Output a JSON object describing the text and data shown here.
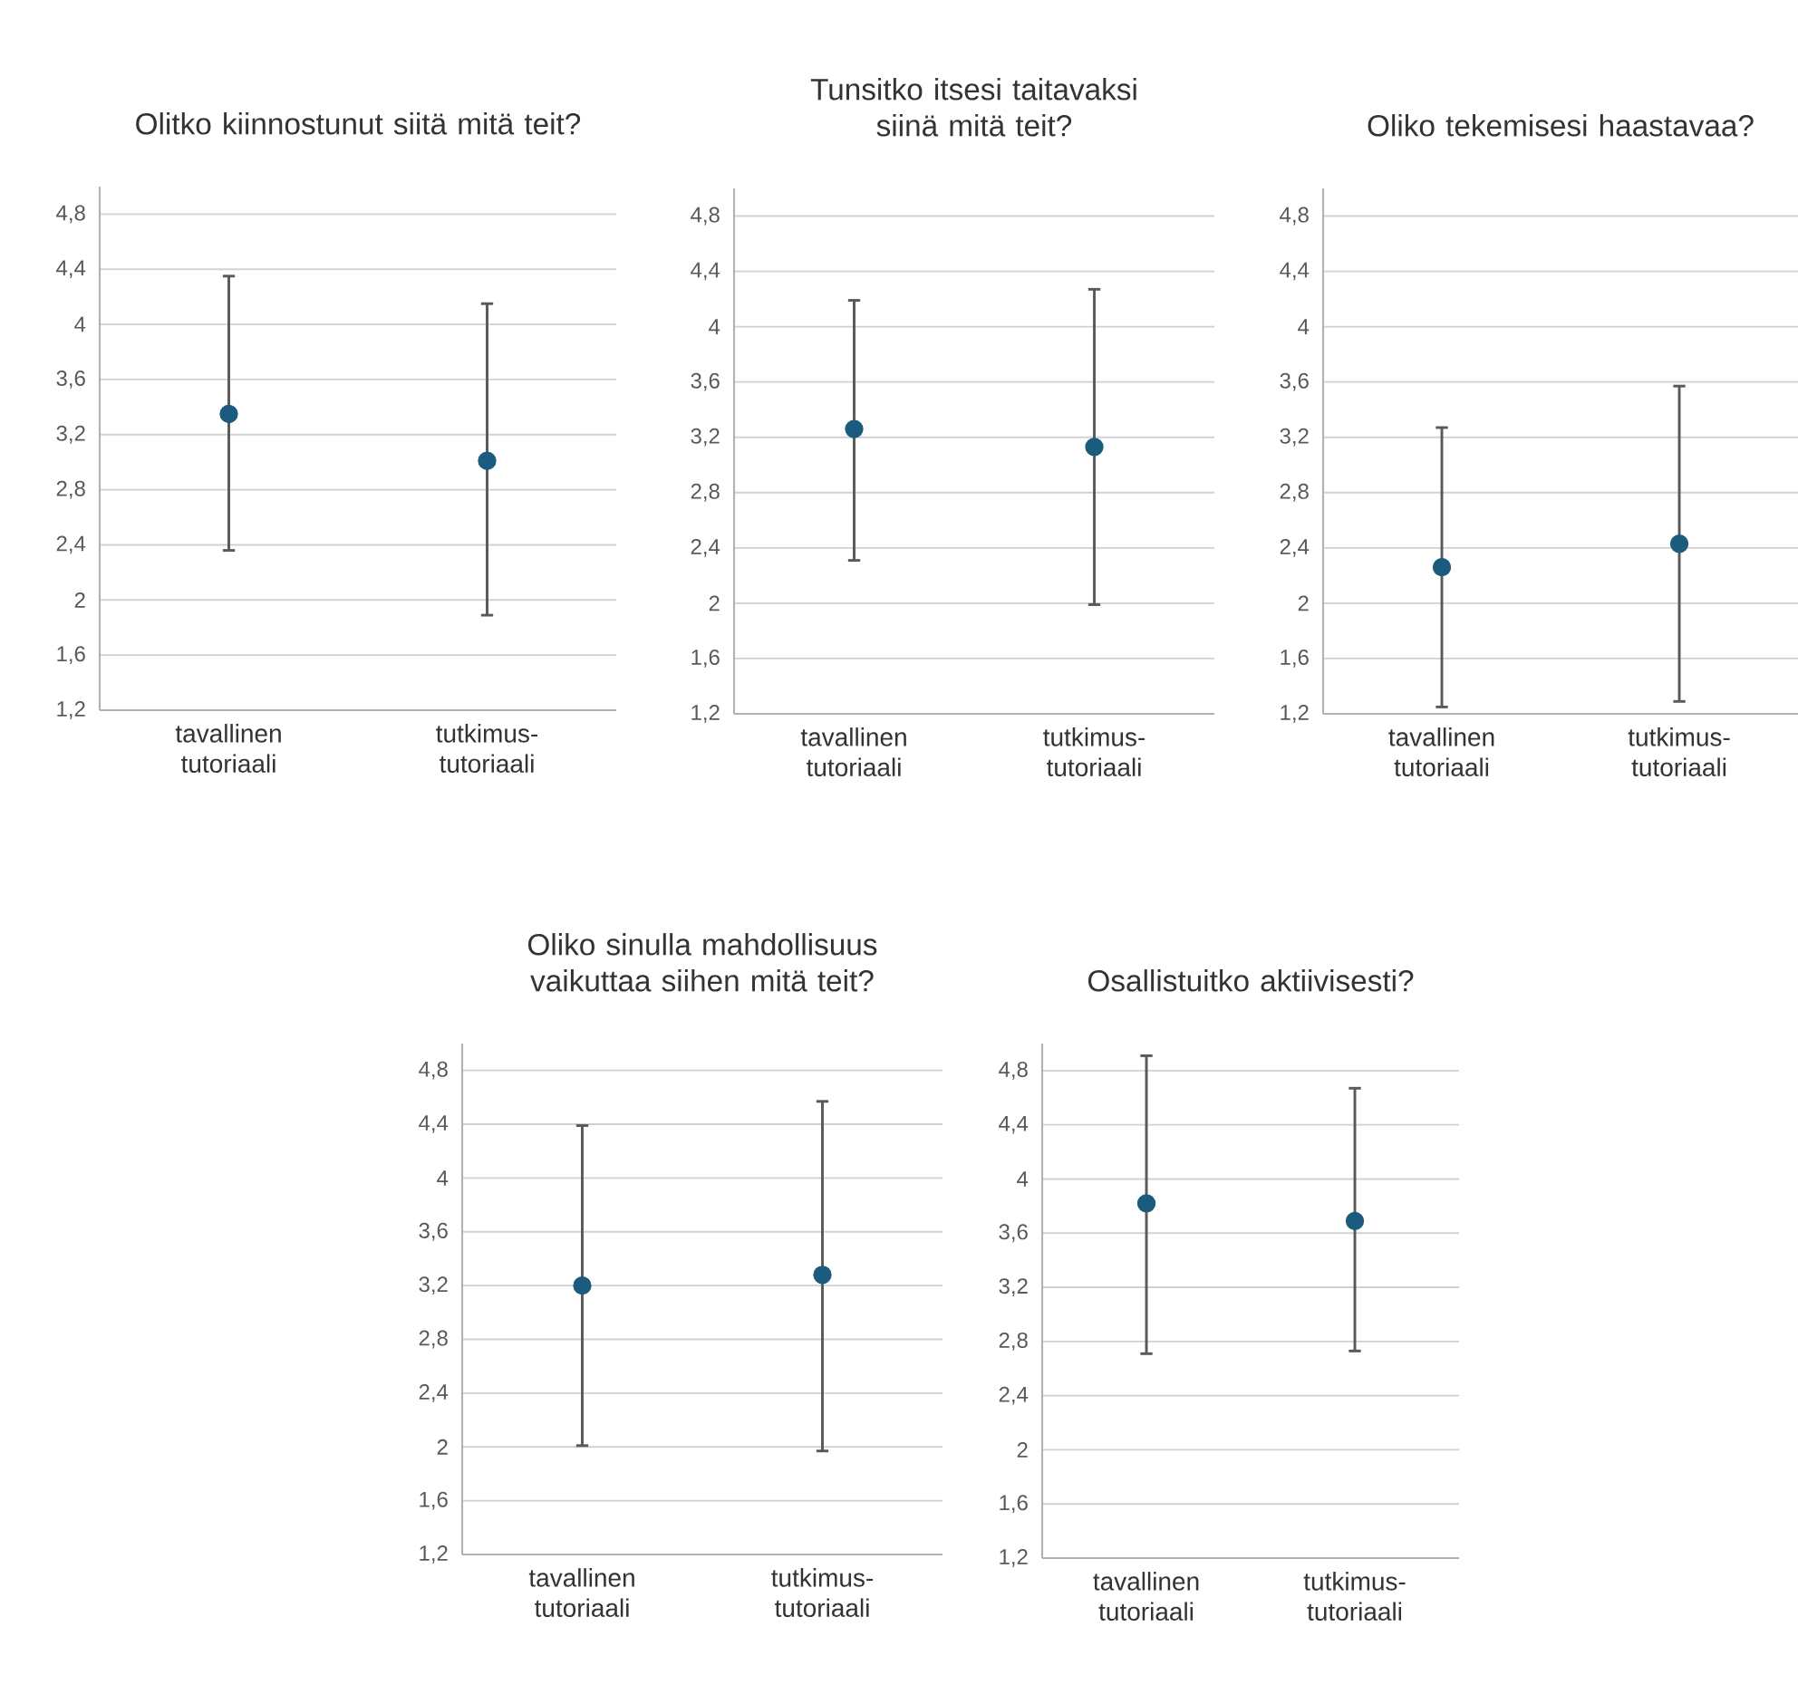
{
  "chart_data": [
    {
      "type": "scatter",
      "title": "Olitko kiinnostunut siitä mitä teit?",
      "categories": [
        "tavallinen tutoriaali",
        "tutkimus-tutoriaali"
      ],
      "values": [
        3.35,
        3.01
      ],
      "errors": [
        [
          2.35,
          4.36
        ],
        [
          1.88,
          4.16
        ]
      ],
      "color": "#1b5c7e",
      "grid": "y",
      "ylim": [
        1.2,
        5.0
      ],
      "yticks": [
        {
          "value": 1.2,
          "label": "1,2"
        },
        {
          "value": 1.6,
          "label": "1,6"
        },
        {
          "value": 2,
          "label": "2"
        },
        {
          "value": 2.4,
          "label": "2,4"
        },
        {
          "value": 2.8,
          "label": "2,8"
        },
        {
          "value": 3.2,
          "label": "3,2"
        },
        {
          "value": 3.6,
          "label": "3,6"
        },
        {
          "value": 4,
          "label": "4"
        },
        {
          "value": 4.4,
          "label": "4,4"
        },
        {
          "value": 4.8,
          "label": "4,8"
        }
      ]
    },
    {
      "type": "scatter",
      "title": "Tunsitko itsesi taitavaksi siinä mitä teit?",
      "categories": [
        "tavallinen tutoriaali",
        "tutkimus-tutoriaali"
      ],
      "values": [
        3.26,
        3.13
      ],
      "errors": [
        [
          2.3,
          4.2
        ],
        [
          1.98,
          4.28
        ]
      ],
      "color": "#1b5c7e",
      "grid": "y",
      "ylim": [
        1.2,
        5.0
      ],
      "yticks": [
        {
          "value": 1.2,
          "label": "1,2"
        },
        {
          "value": 1.6,
          "label": "1,6"
        },
        {
          "value": 2,
          "label": "2"
        },
        {
          "value": 2.4,
          "label": "2,4"
        },
        {
          "value": 2.8,
          "label": "2,8"
        },
        {
          "value": 3.2,
          "label": "3,2"
        },
        {
          "value": 3.6,
          "label": "3,6"
        },
        {
          "value": 4,
          "label": "4"
        },
        {
          "value": 4.4,
          "label": "4,4"
        },
        {
          "value": 4.8,
          "label": "4,8"
        }
      ]
    },
    {
      "type": "scatter",
      "title": "Oliko tekemisesi haastavaa?",
      "categories": [
        "tavallinen tutoriaali",
        "tutkimus-tutoriaali"
      ],
      "values": [
        2.26,
        2.43
      ],
      "errors": [
        [
          1.24,
          3.28
        ],
        [
          1.28,
          3.58
        ]
      ],
      "color": "#1b5c7e",
      "grid": "y",
      "ylim": [
        1.2,
        5.0
      ],
      "yticks": [
        {
          "value": 1.2,
          "label": "1,2"
        },
        {
          "value": 1.6,
          "label": "1,6"
        },
        {
          "value": 2,
          "label": "2"
        },
        {
          "value": 2.4,
          "label": "2,4"
        },
        {
          "value": 2.8,
          "label": "2,8"
        },
        {
          "value": 3.2,
          "label": "3,2"
        },
        {
          "value": 3.6,
          "label": "3,6"
        },
        {
          "value": 4,
          "label": "4"
        },
        {
          "value": 4.4,
          "label": "4,4"
        },
        {
          "value": 4.8,
          "label": "4,8"
        }
      ]
    },
    {
      "type": "scatter",
      "title": "Oliko sinulla mahdollisuus vaikuttaa siihen mitä teit?",
      "categories": [
        "tavallinen tutoriaali",
        "tutkimus-tutoriaali"
      ],
      "values": [
        3.2,
        3.28
      ],
      "errors": [
        [
          2.0,
          4.4
        ],
        [
          1.96,
          4.58
        ]
      ],
      "color": "#1b5c7e",
      "grid": "y",
      "ylim": [
        1.2,
        5.0
      ],
      "yticks": [
        {
          "value": 1.2,
          "label": "1,2"
        },
        {
          "value": 1.6,
          "label": "1,6"
        },
        {
          "value": 2,
          "label": "2"
        },
        {
          "value": 2.4,
          "label": "2,4"
        },
        {
          "value": 2.8,
          "label": "2,8"
        },
        {
          "value": 3.2,
          "label": "3,2"
        },
        {
          "value": 3.6,
          "label": "3,6"
        },
        {
          "value": 4,
          "label": "4"
        },
        {
          "value": 4.4,
          "label": "4,4"
        },
        {
          "value": 4.8,
          "label": "4,8"
        }
      ]
    },
    {
      "type": "scatter",
      "title": "Osallistuitko aktiivisesti?",
      "categories": [
        "tavallinen tutoriaali",
        "tutkimus-tutoriaali"
      ],
      "values": [
        3.82,
        3.69
      ],
      "errors": [
        [
          2.7,
          4.92
        ],
        [
          2.72,
          4.68
        ]
      ],
      "color": "#1b5c7e",
      "grid": "y",
      "ylim": [
        1.2,
        5.0
      ],
      "yticks": [
        {
          "value": 1.2,
          "label": "1,2"
        },
        {
          "value": 1.6,
          "label": "1,6"
        },
        {
          "value": 2,
          "label": "2"
        },
        {
          "value": 2.4,
          "label": "2,4"
        },
        {
          "value": 2.8,
          "label": "2,8"
        },
        {
          "value": 3.2,
          "label": "3,2"
        },
        {
          "value": 3.6,
          "label": "3,6"
        },
        {
          "value": 4,
          "label": "4"
        },
        {
          "value": 4.4,
          "label": "4,4"
        },
        {
          "value": 4.8,
          "label": "4,8"
        }
      ]
    }
  ]
}
